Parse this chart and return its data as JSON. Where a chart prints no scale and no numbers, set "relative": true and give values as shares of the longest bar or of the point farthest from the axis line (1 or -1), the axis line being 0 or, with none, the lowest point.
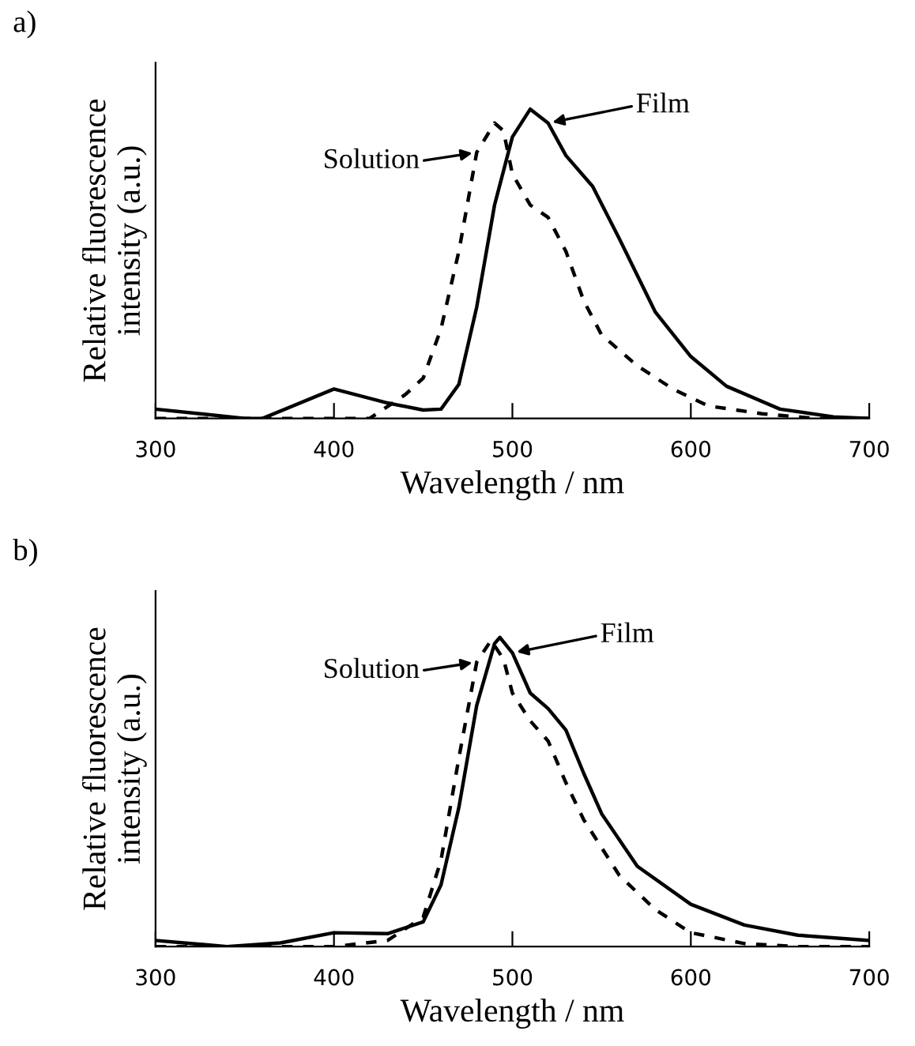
{
  "chart_data": [
    {
      "type": "line",
      "title": "a)",
      "xlabel": "Wavelength / nm",
      "ylabel": "Relative fluorescence\nintensity (a.u.)",
      "relative": true,
      "xlim": [
        300,
        700
      ],
      "xticks": [
        300,
        400,
        500,
        600,
        700
      ],
      "grid": false,
      "series": [
        {
          "name": "Film",
          "color": "#000000",
          "line_style": "solid",
          "x": [
            300,
            350,
            360,
            400,
            430,
            450,
            460,
            470,
            480,
            490,
            500,
            510,
            520,
            530,
            545,
            560,
            580,
            600,
            620,
            650,
            680,
            700
          ],
          "values": [
            0.03,
            0,
            0,
            0.095,
            0.05,
            0.027,
            0.03,
            0.11,
            0.36,
            0.69,
            0.91,
            1.0,
            0.955,
            0.85,
            0.75,
            0.58,
            0.345,
            0.2,
            0.104,
            0.03,
            0.005,
            0
          ]
        },
        {
          "name": "Solution",
          "color": "#000000",
          "line_style": "dashed",
          "x": [
            300,
            420,
            440,
            450,
            460,
            470,
            480,
            490,
            495,
            500,
            510,
            520,
            530,
            540,
            550,
            570,
            590,
            610,
            640,
            670,
            700
          ],
          "values": [
            0,
            0,
            0.077,
            0.13,
            0.29,
            0.54,
            0.86,
            0.955,
            0.93,
            0.79,
            0.69,
            0.65,
            0.54,
            0.38,
            0.27,
            0.17,
            0.095,
            0.04,
            0.015,
            0,
            0
          ]
        }
      ]
    },
    {
      "type": "line",
      "title": "b)",
      "xlabel": "Wavelength / nm",
      "ylabel": "Relative fluorescence\nintensity (a.u.)",
      "relative": true,
      "xlim": [
        300,
        700
      ],
      "xticks": [
        300,
        400,
        500,
        600,
        700
      ],
      "grid": false,
      "series": [
        {
          "name": "Film",
          "color": "#000000",
          "line_style": "solid",
          "x": [
            300,
            340,
            370,
            400,
            430,
            450,
            460,
            470,
            480,
            490,
            493,
            500,
            510,
            520,
            530,
            540,
            550,
            570,
            600,
            630,
            660,
            700
          ],
          "values": [
            0.02,
            0,
            0.012,
            0.045,
            0.042,
            0.08,
            0.2,
            0.45,
            0.78,
            0.98,
            1.0,
            0.95,
            0.82,
            0.77,
            0.7,
            0.56,
            0.43,
            0.26,
            0.137,
            0.07,
            0.037,
            0.02
          ]
        },
        {
          "name": "Solution",
          "color": "#000000",
          "line_style": "dashed",
          "x": [
            300,
            400,
            430,
            450,
            460,
            470,
            480,
            488,
            495,
            500,
            510,
            520,
            530,
            540,
            560,
            580,
            600,
            630,
            660,
            700
          ],
          "values": [
            0,
            0,
            0.02,
            0.095,
            0.28,
            0.61,
            0.92,
            0.99,
            0.93,
            0.82,
            0.73,
            0.665,
            0.53,
            0.41,
            0.23,
            0.12,
            0.045,
            0.01,
            0,
            0
          ]
        }
      ]
    }
  ]
}
